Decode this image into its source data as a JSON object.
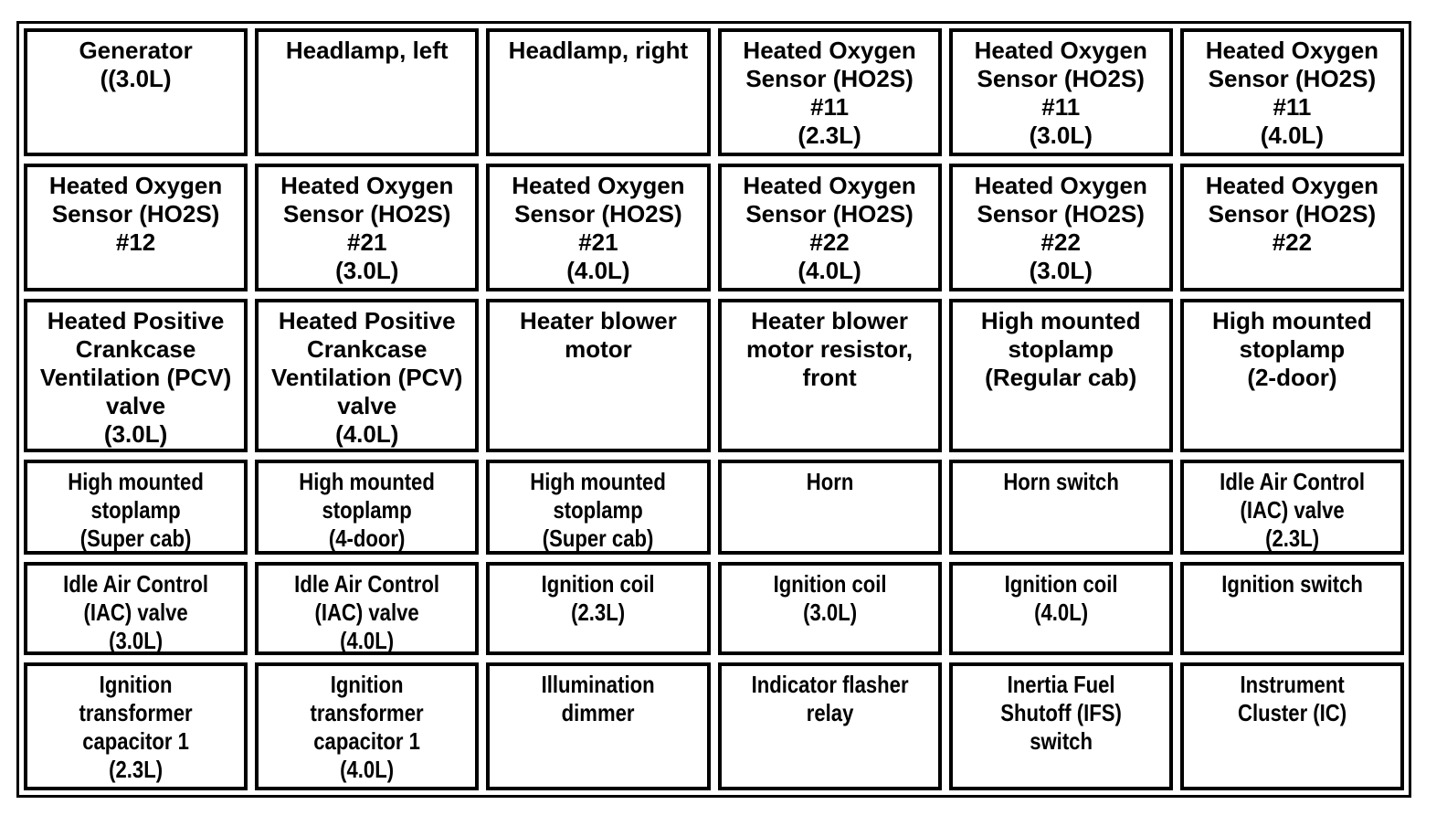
{
  "page": {
    "background_color": "#ffffff"
  },
  "table": {
    "rows": 6,
    "columns": 6,
    "border_color": "#000000",
    "text_color": "#000000",
    "cell_background": "#ffffff",
    "cells": [
      {
        "row": 1,
        "col": 1,
        "lines": [
          "Generator",
          "((3.0L)"
        ]
      },
      {
        "row": 1,
        "col": 2,
        "lines": [
          "Headlamp, left"
        ]
      },
      {
        "row": 1,
        "col": 3,
        "lines": [
          "Headlamp, right"
        ]
      },
      {
        "row": 1,
        "col": 4,
        "lines": [
          "Heated Oxygen",
          "Sensor (HO2S)",
          "#11",
          "(2.3L)"
        ]
      },
      {
        "row": 1,
        "col": 5,
        "lines": [
          "Heated Oxygen",
          "Sensor (HO2S)",
          "#11",
          "(3.0L)"
        ]
      },
      {
        "row": 1,
        "col": 6,
        "lines": [
          "Heated Oxygen",
          "Sensor (HO2S)",
          "#11",
          "(4.0L)"
        ]
      },
      {
        "row": 2,
        "col": 1,
        "lines": [
          "Heated Oxygen",
          "Sensor (HO2S)",
          "#12"
        ]
      },
      {
        "row": 2,
        "col": 2,
        "lines": [
          "Heated Oxygen",
          "Sensor (HO2S)",
          "#21",
          "(3.0L)"
        ]
      },
      {
        "row": 2,
        "col": 3,
        "lines": [
          "Heated Oxygen",
          "Sensor (HO2S)",
          "#21",
          "(4.0L)"
        ]
      },
      {
        "row": 2,
        "col": 4,
        "lines": [
          "Heated Oxygen",
          "Sensor (HO2S)",
          "#22",
          "(4.0L)"
        ]
      },
      {
        "row": 2,
        "col": 5,
        "lines": [
          "Heated Oxygen",
          "Sensor (HO2S)",
          "#22",
          "(3.0L)"
        ]
      },
      {
        "row": 2,
        "col": 6,
        "lines": [
          "Heated Oxygen",
          "Sensor (HO2S)",
          "#22"
        ]
      },
      {
        "row": 3,
        "col": 1,
        "lines": [
          "Heated Positive",
          "Crankcase",
          "Ventilation (PCV)",
          "valve",
          "(3.0L)"
        ]
      },
      {
        "row": 3,
        "col": 2,
        "lines": [
          "Heated Positive",
          "Crankcase",
          "Ventilation (PCV)",
          "valve",
          "(4.0L)"
        ]
      },
      {
        "row": 3,
        "col": 3,
        "lines": [
          "Heater blower",
          "motor"
        ]
      },
      {
        "row": 3,
        "col": 4,
        "lines": [
          "Heater blower",
          "motor resistor,",
          "front"
        ]
      },
      {
        "row": 3,
        "col": 5,
        "lines": [
          "High mounted",
          "stoplamp",
          "(Regular cab)"
        ]
      },
      {
        "row": 3,
        "col": 6,
        "lines": [
          "High mounted",
          "stoplamp",
          "(2-door)"
        ]
      },
      {
        "row": 4,
        "col": 1,
        "lines": [
          "High mounted",
          "stoplamp",
          "(Super cab)"
        ]
      },
      {
        "row": 4,
        "col": 2,
        "lines": [
          "High mounted",
          "stoplamp",
          "(4-door)"
        ]
      },
      {
        "row": 4,
        "col": 3,
        "lines": [
          "High mounted",
          "stoplamp",
          "(Super cab)"
        ]
      },
      {
        "row": 4,
        "col": 4,
        "lines": [
          "Horn"
        ]
      },
      {
        "row": 4,
        "col": 5,
        "lines": [
          "Horn switch"
        ]
      },
      {
        "row": 4,
        "col": 6,
        "lines": [
          "Idle Air Control",
          "(IAC) valve",
          "(2.3L)"
        ]
      },
      {
        "row": 5,
        "col": 1,
        "lines": [
          "Idle Air Control",
          "(IAC) valve",
          "(3.0L)"
        ]
      },
      {
        "row": 5,
        "col": 2,
        "lines": [
          "Idle Air Control",
          "(IAC) valve",
          "(4.0L)"
        ]
      },
      {
        "row": 5,
        "col": 3,
        "lines": [
          "Ignition coil",
          "(2.3L)"
        ]
      },
      {
        "row": 5,
        "col": 4,
        "lines": [
          "Ignition coil",
          "(3.0L)"
        ]
      },
      {
        "row": 5,
        "col": 5,
        "lines": [
          "Ignition coil",
          "(4.0L)"
        ]
      },
      {
        "row": 5,
        "col": 6,
        "lines": [
          "Ignition switch"
        ]
      },
      {
        "row": 6,
        "col": 1,
        "lines": [
          "Ignition",
          "transformer",
          "capacitor 1",
          "(2.3L)"
        ]
      },
      {
        "row": 6,
        "col": 2,
        "lines": [
          "Ignition",
          "transformer",
          "capacitor 1",
          "(4.0L)"
        ]
      },
      {
        "row": 6,
        "col": 3,
        "lines": [
          "Illumination",
          "dimmer"
        ]
      },
      {
        "row": 6,
        "col": 4,
        "lines": [
          "Indicator flasher",
          "relay"
        ]
      },
      {
        "row": 6,
        "col": 5,
        "lines": [
          "Inertia Fuel",
          "Shutoff (IFS)",
          "switch"
        ]
      },
      {
        "row": 6,
        "col": 6,
        "lines": [
          "Instrument",
          "Cluster (IC)"
        ]
      }
    ]
  }
}
